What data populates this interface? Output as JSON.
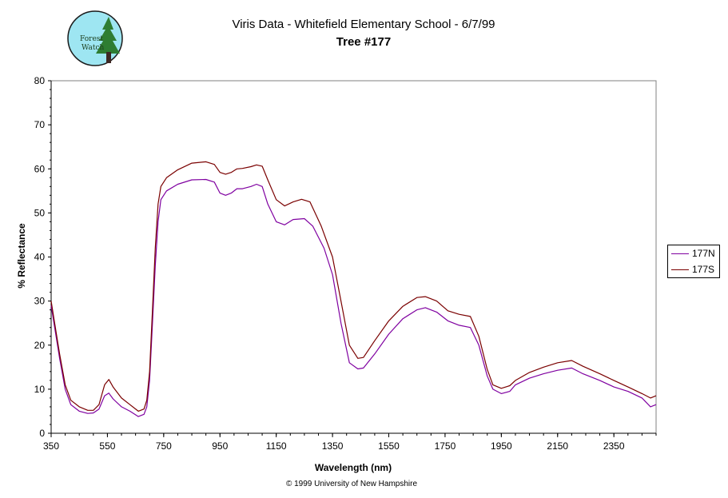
{
  "header": {
    "title": "Viris Data - Whitefield Elementary School - 6/7/99",
    "subtitle": "Tree #177",
    "logo_text_line1": "Forest",
    "logo_text_line2": "Watch"
  },
  "footer": {
    "copyright": "© 1999 University of New Hampshire"
  },
  "colors": {
    "177N": "#7f00a0",
    "177S": "#7a0000",
    "logo_bg": "#9ee6f2",
    "logo_tree": "#2e7d32"
  },
  "chart_data": {
    "type": "line",
    "xlabel": "Wavelength (nm)",
    "ylabel": "% Reflectance",
    "xlim": [
      350,
      2500
    ],
    "ylim": [
      0,
      80
    ],
    "x_ticks": [
      350,
      550,
      750,
      950,
      1150,
      1350,
      1550,
      1750,
      1950,
      2150,
      2350
    ],
    "y_ticks": [
      0,
      10,
      20,
      30,
      40,
      50,
      60,
      70,
      80
    ],
    "grid": false,
    "legend_position": "right",
    "series": [
      {
        "name": "177N",
        "color": "#7f00a0",
        "points": [
          [
            350,
            29
          ],
          [
            360,
            25
          ],
          [
            380,
            17
          ],
          [
            400,
            10
          ],
          [
            420,
            6.5
          ],
          [
            450,
            5
          ],
          [
            480,
            4.5
          ],
          [
            500,
            4.6
          ],
          [
            520,
            5.5
          ],
          [
            540,
            8.5
          ],
          [
            555,
            9.1
          ],
          [
            570,
            7.8
          ],
          [
            600,
            6
          ],
          [
            630,
            5
          ],
          [
            660,
            3.8
          ],
          [
            680,
            4.3
          ],
          [
            690,
            6
          ],
          [
            700,
            12
          ],
          [
            710,
            25
          ],
          [
            720,
            38
          ],
          [
            730,
            48
          ],
          [
            740,
            53
          ],
          [
            760,
            55
          ],
          [
            800,
            56.5
          ],
          [
            850,
            57.5
          ],
          [
            900,
            57.6
          ],
          [
            930,
            57
          ],
          [
            950,
            54.5
          ],
          [
            970,
            54
          ],
          [
            990,
            54.5
          ],
          [
            1010,
            55.5
          ],
          [
            1030,
            55.5
          ],
          [
            1060,
            56
          ],
          [
            1080,
            56.5
          ],
          [
            1100,
            56
          ],
          [
            1120,
            52
          ],
          [
            1150,
            48
          ],
          [
            1180,
            47.3
          ],
          [
            1210,
            48.5
          ],
          [
            1250,
            48.7
          ],
          [
            1280,
            47
          ],
          [
            1320,
            42
          ],
          [
            1350,
            36
          ],
          [
            1380,
            25
          ],
          [
            1410,
            16
          ],
          [
            1440,
            14.6
          ],
          [
            1460,
            14.8
          ],
          [
            1500,
            18
          ],
          [
            1550,
            22.5
          ],
          [
            1600,
            26
          ],
          [
            1650,
            28
          ],
          [
            1680,
            28.5
          ],
          [
            1720,
            27.5
          ],
          [
            1760,
            25.5
          ],
          [
            1800,
            24.5
          ],
          [
            1840,
            24
          ],
          [
            1870,
            20
          ],
          [
            1900,
            13
          ],
          [
            1920,
            10
          ],
          [
            1950,
            9
          ],
          [
            1980,
            9.5
          ],
          [
            2000,
            11
          ],
          [
            2050,
            12.5
          ],
          [
            2100,
            13.5
          ],
          [
            2150,
            14.3
          ],
          [
            2200,
            14.8
          ],
          [
            2240,
            13.5
          ],
          [
            2300,
            12
          ],
          [
            2350,
            10.5
          ],
          [
            2400,
            9.5
          ],
          [
            2450,
            8
          ],
          [
            2480,
            6
          ],
          [
            2500,
            6.5
          ]
        ]
      },
      {
        "name": "177S",
        "color": "#7a0000",
        "points": [
          [
            350,
            30
          ],
          [
            360,
            26
          ],
          [
            380,
            18
          ],
          [
            400,
            11
          ],
          [
            420,
            7.5
          ],
          [
            450,
            6
          ],
          [
            480,
            5.2
          ],
          [
            500,
            5.2
          ],
          [
            520,
            6.5
          ],
          [
            540,
            11
          ],
          [
            555,
            12.2
          ],
          [
            570,
            10.5
          ],
          [
            600,
            8
          ],
          [
            630,
            6.5
          ],
          [
            660,
            5
          ],
          [
            680,
            5.5
          ],
          [
            690,
            7.5
          ],
          [
            700,
            14
          ],
          [
            710,
            28
          ],
          [
            720,
            42
          ],
          [
            730,
            52
          ],
          [
            740,
            56
          ],
          [
            760,
            58
          ],
          [
            800,
            59.8
          ],
          [
            850,
            61.3
          ],
          [
            900,
            61.6
          ],
          [
            930,
            61
          ],
          [
            950,
            59.2
          ],
          [
            970,
            58.8
          ],
          [
            990,
            59.2
          ],
          [
            1010,
            60
          ],
          [
            1030,
            60.1
          ],
          [
            1060,
            60.5
          ],
          [
            1080,
            60.9
          ],
          [
            1100,
            60.6
          ],
          [
            1120,
            57.5
          ],
          [
            1150,
            53
          ],
          [
            1180,
            51.6
          ],
          [
            1210,
            52.5
          ],
          [
            1240,
            53.1
          ],
          [
            1270,
            52.5
          ],
          [
            1310,
            47
          ],
          [
            1350,
            40
          ],
          [
            1380,
            30
          ],
          [
            1410,
            20
          ],
          [
            1440,
            17
          ],
          [
            1460,
            17.2
          ],
          [
            1500,
            21
          ],
          [
            1550,
            25.5
          ],
          [
            1600,
            28.8
          ],
          [
            1650,
            30.8
          ],
          [
            1680,
            31
          ],
          [
            1720,
            30
          ],
          [
            1760,
            27.8
          ],
          [
            1800,
            27
          ],
          [
            1840,
            26.5
          ],
          [
            1870,
            22
          ],
          [
            1900,
            14.5
          ],
          [
            1920,
            11
          ],
          [
            1950,
            10.2
          ],
          [
            1980,
            10.8
          ],
          [
            2000,
            12
          ],
          [
            2050,
            13.8
          ],
          [
            2100,
            15
          ],
          [
            2150,
            16
          ],
          [
            2200,
            16.5
          ],
          [
            2240,
            15.2
          ],
          [
            2300,
            13.5
          ],
          [
            2350,
            12
          ],
          [
            2400,
            10.5
          ],
          [
            2450,
            9
          ],
          [
            2480,
            8
          ],
          [
            2500,
            8.5
          ]
        ]
      }
    ]
  }
}
